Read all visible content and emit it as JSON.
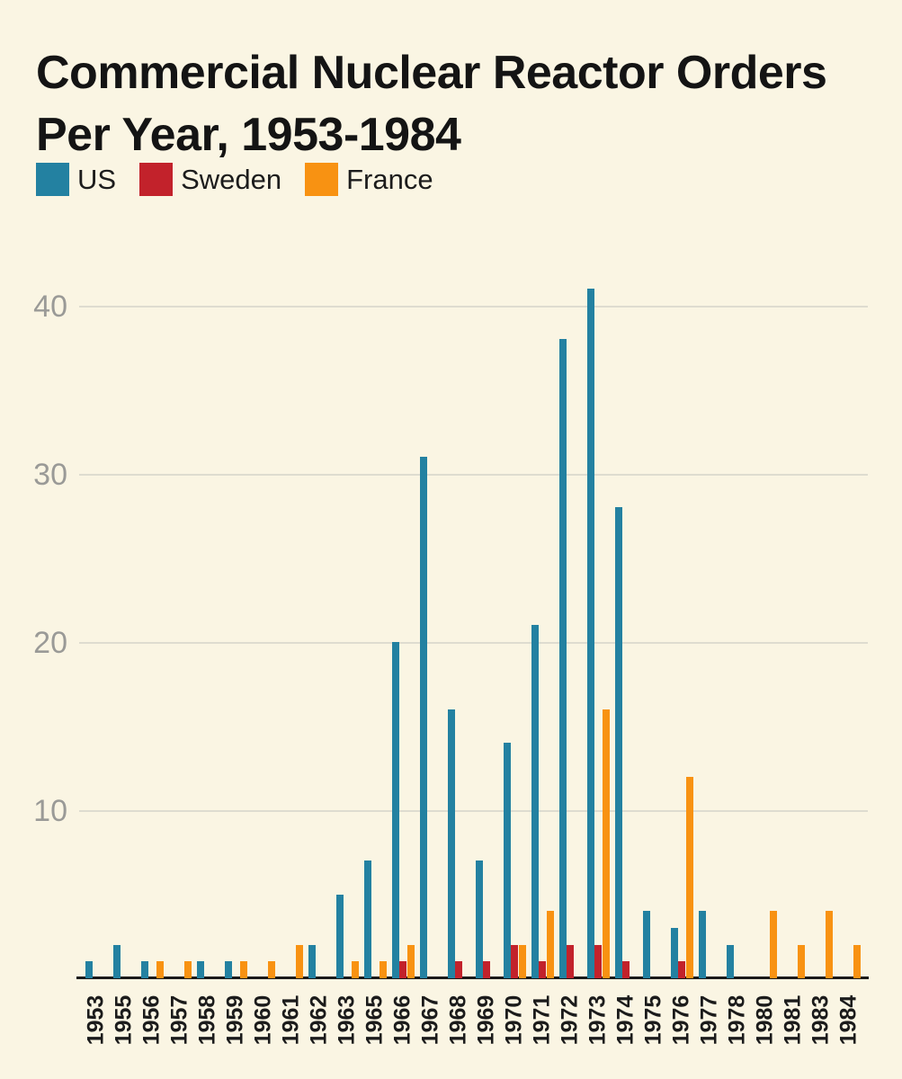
{
  "title": {
    "line1": "Commercial Nuclear Reactor Orders",
    "line2": "Per Year, 1953-1984"
  },
  "colors": {
    "background": "#FAF5E3",
    "us": "#2381A1",
    "sweden": "#C2222B",
    "france": "#F89212",
    "gridline": "#DEDCD0",
    "axis": "#1A1A1A",
    "ytick_text": "#9A9A97",
    "xtick_text": "#1B1B1B",
    "title_text": "#141414"
  },
  "legend": [
    {
      "label": "US",
      "color": "#2381A1"
    },
    {
      "label": "Sweden",
      "color": "#C2222B"
    },
    {
      "label": "France",
      "color": "#F89212"
    }
  ],
  "chart_data": {
    "type": "bar",
    "title": "Commercial Nuclear Reactor Orders Per Year, 1953-1984",
    "xlabel": "",
    "ylabel": "",
    "ylim": [
      0,
      41
    ],
    "yticks": [
      10,
      20,
      30,
      40
    ],
    "grid": true,
    "legend_position": "top-left",
    "categories": [
      "1953",
      "1955",
      "1956",
      "1957",
      "1958",
      "1959",
      "1960",
      "1961",
      "1962",
      "1963",
      "1965",
      "1966",
      "1967",
      "1968",
      "1969",
      "1970",
      "1971",
      "1972",
      "1973",
      "1974",
      "1975",
      "1976",
      "1977",
      "1978",
      "1980",
      "1981",
      "1983",
      "1984"
    ],
    "series": [
      {
        "name": "US",
        "color": "#2381A1",
        "values": [
          1,
          2,
          1,
          0,
          1,
          1,
          0,
          0,
          2,
          5,
          7,
          20,
          31,
          16,
          7,
          14,
          21,
          38,
          41,
          28,
          4,
          3,
          4,
          2,
          0,
          0,
          0,
          0
        ]
      },
      {
        "name": "Sweden",
        "color": "#C2222B",
        "values": [
          0,
          0,
          0,
          0,
          0,
          0,
          0,
          0,
          0,
          0,
          0,
          1,
          0,
          1,
          1,
          2,
          1,
          2,
          2,
          1,
          0,
          1,
          0,
          0,
          0,
          0,
          0,
          0
        ]
      },
      {
        "name": "France",
        "color": "#F89212",
        "values": [
          0,
          0,
          1,
          1,
          0,
          1,
          1,
          2,
          0,
          1,
          1,
          2,
          0,
          0,
          0,
          2,
          4,
          0,
          16,
          0,
          0,
          12,
          0,
          0,
          4,
          2,
          4,
          2
        ]
      }
    ]
  }
}
